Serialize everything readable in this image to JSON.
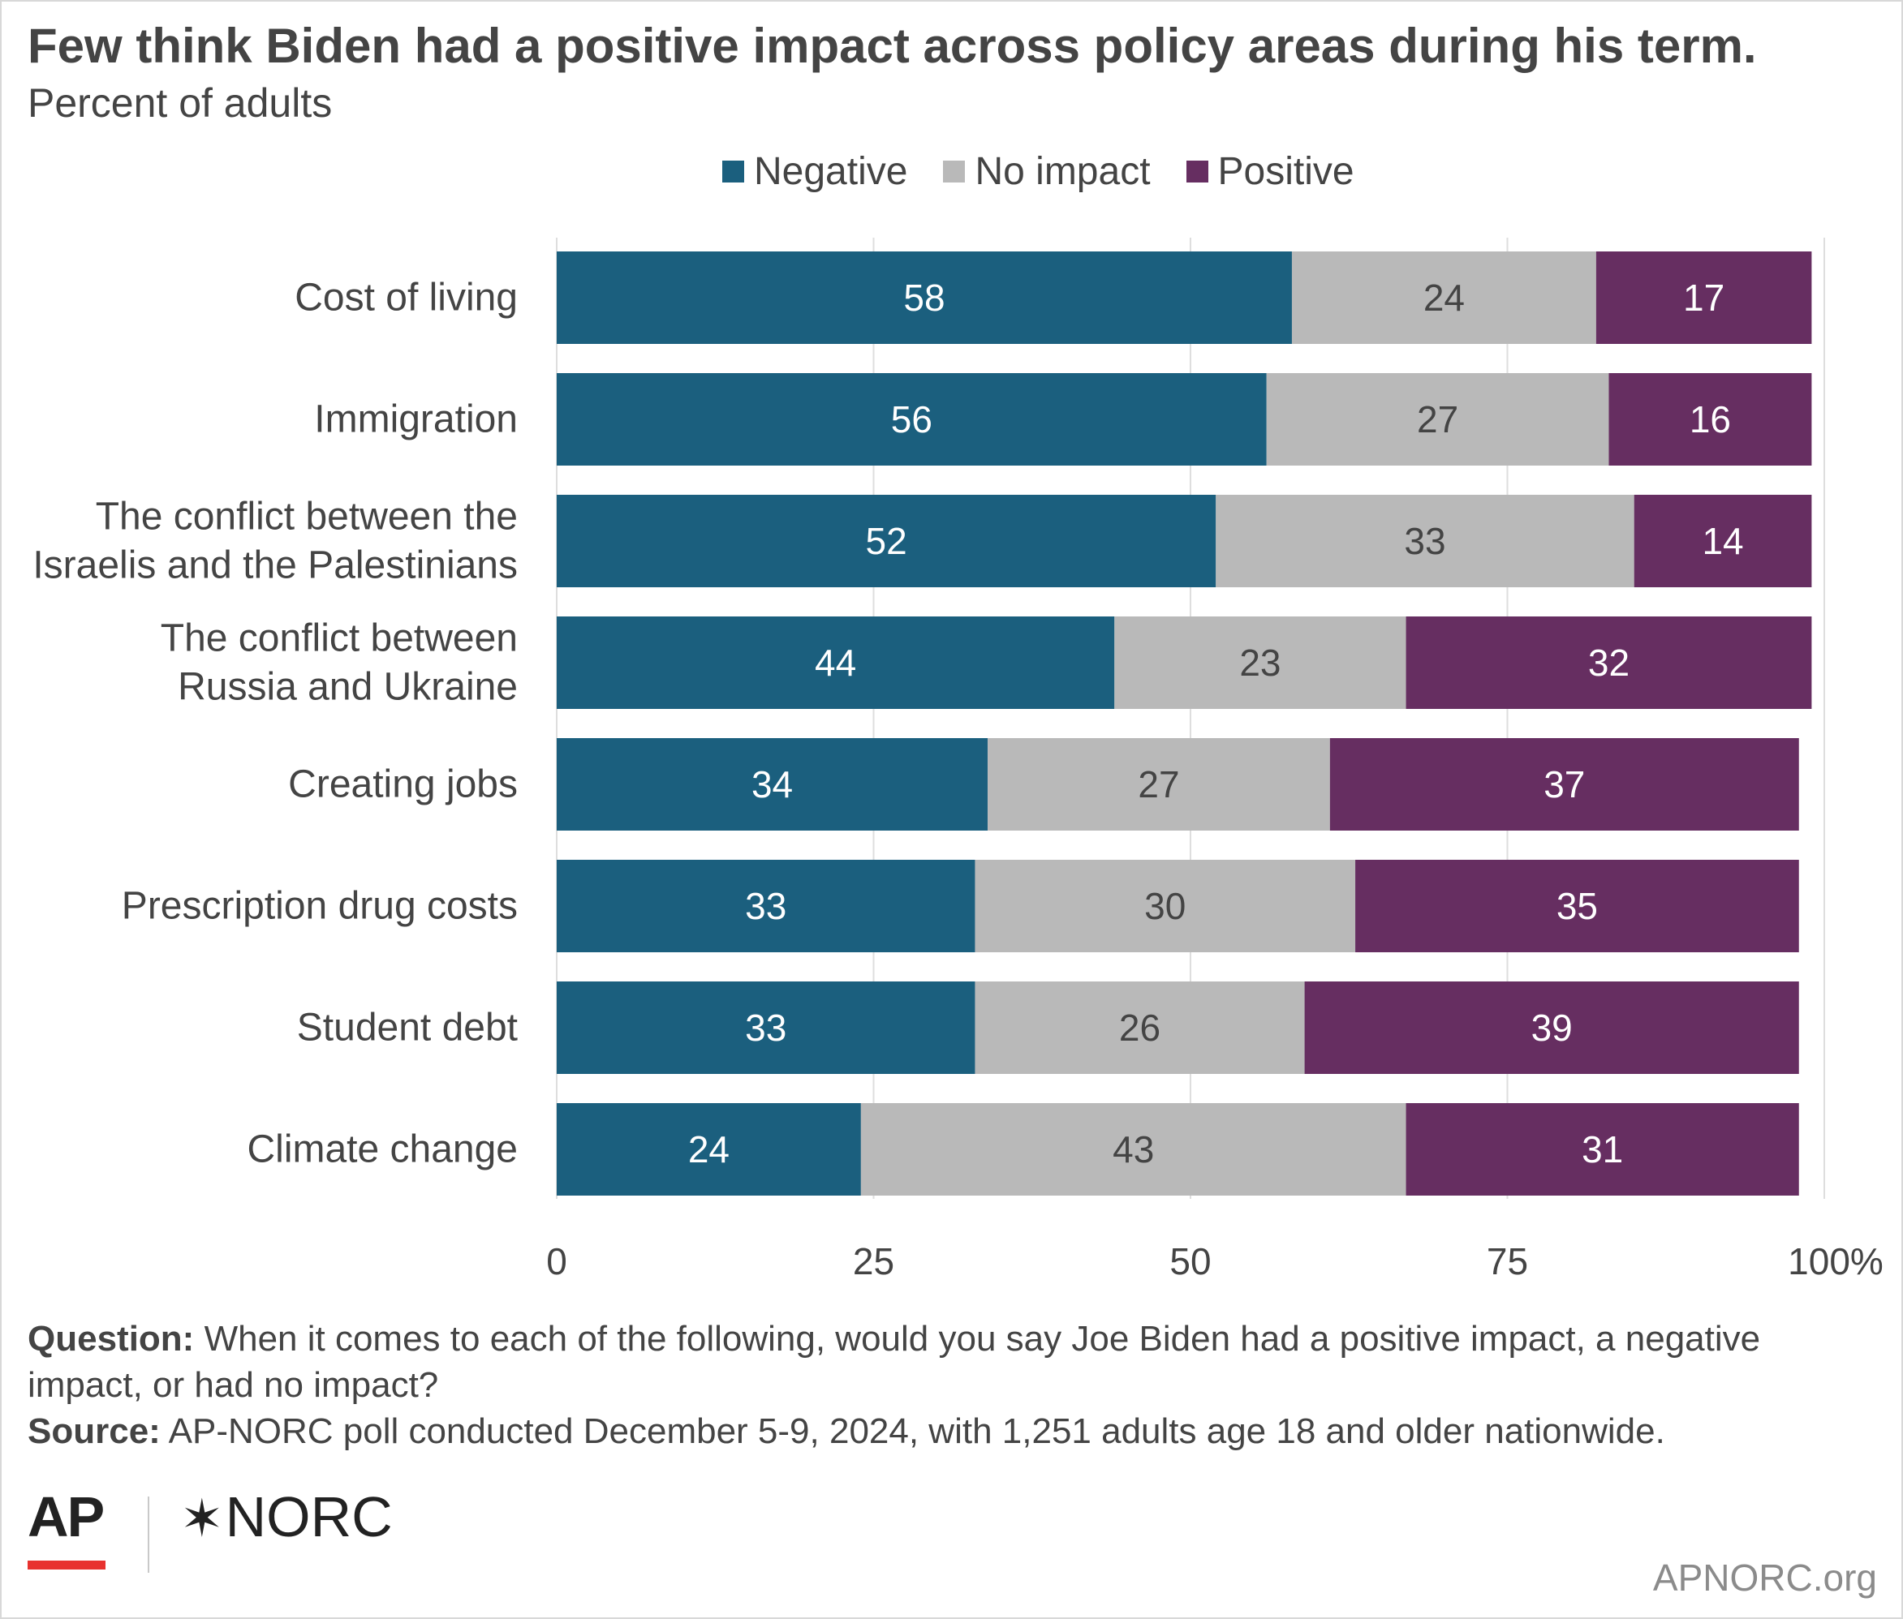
{
  "header": {
    "title": "Few think Biden had a positive impact across policy areas during his term.",
    "subtitle": "Percent of adults"
  },
  "legend": [
    {
      "label": "Negative",
      "color": "#1b5f7e"
    },
    {
      "label": "No impact",
      "color": "#b9b9b9"
    },
    {
      "label": "Positive",
      "color": "#662e61"
    }
  ],
  "chart_data": {
    "type": "bar",
    "orientation": "horizontal",
    "stacked": true,
    "title": "Few think Biden had a positive impact across policy areas during his term.",
    "subtitle": "Percent of adults",
    "categories": [
      [
        "Cost of living"
      ],
      [
        "Immigration"
      ],
      [
        "The conflict between the",
        "Israelis and the Palestinians"
      ],
      [
        "The conflict between",
        "Russia and Ukraine"
      ],
      [
        "Creating jobs"
      ],
      [
        "Prescription drug costs"
      ],
      [
        "Student debt"
      ],
      [
        "Climate change"
      ]
    ],
    "series": [
      {
        "name": "Negative",
        "color": "#1b5f7e",
        "label_color": "#ffffff",
        "values": [
          58,
          56,
          52,
          44,
          34,
          33,
          33,
          24
        ]
      },
      {
        "name": "No impact",
        "color": "#b9b9b9",
        "label_color": "#444444",
        "values": [
          24,
          27,
          33,
          23,
          27,
          30,
          26,
          43
        ]
      },
      {
        "name": "Positive",
        "color": "#662e61",
        "label_color": "#ffffff",
        "values": [
          17,
          16,
          14,
          32,
          37,
          35,
          39,
          31
        ]
      }
    ],
    "xlim": [
      0,
      100
    ],
    "xticks": [
      {
        "value": 0,
        "label": "0"
      },
      {
        "value": 25,
        "label": "25"
      },
      {
        "value": 50,
        "label": "50"
      },
      {
        "value": 75,
        "label": "75"
      },
      {
        "value": 100,
        "label": "100%"
      }
    ],
    "grid": true,
    "legend_position": "top"
  },
  "notes": {
    "question_label": "Question:",
    "question_text": "When it comes to each of the following, would you say Joe Biden had a positive impact, a negative impact, or had no impact?",
    "source_label": "Source:",
    "source_text": "AP-NORC poll conducted December 5-9, 2024, with 1,251 adults age 18 and older nationwide."
  },
  "footer": {
    "ap_logo": "AP",
    "norc_logo": "NORC",
    "norc_star": "✶",
    "site": "APNORC.org"
  }
}
